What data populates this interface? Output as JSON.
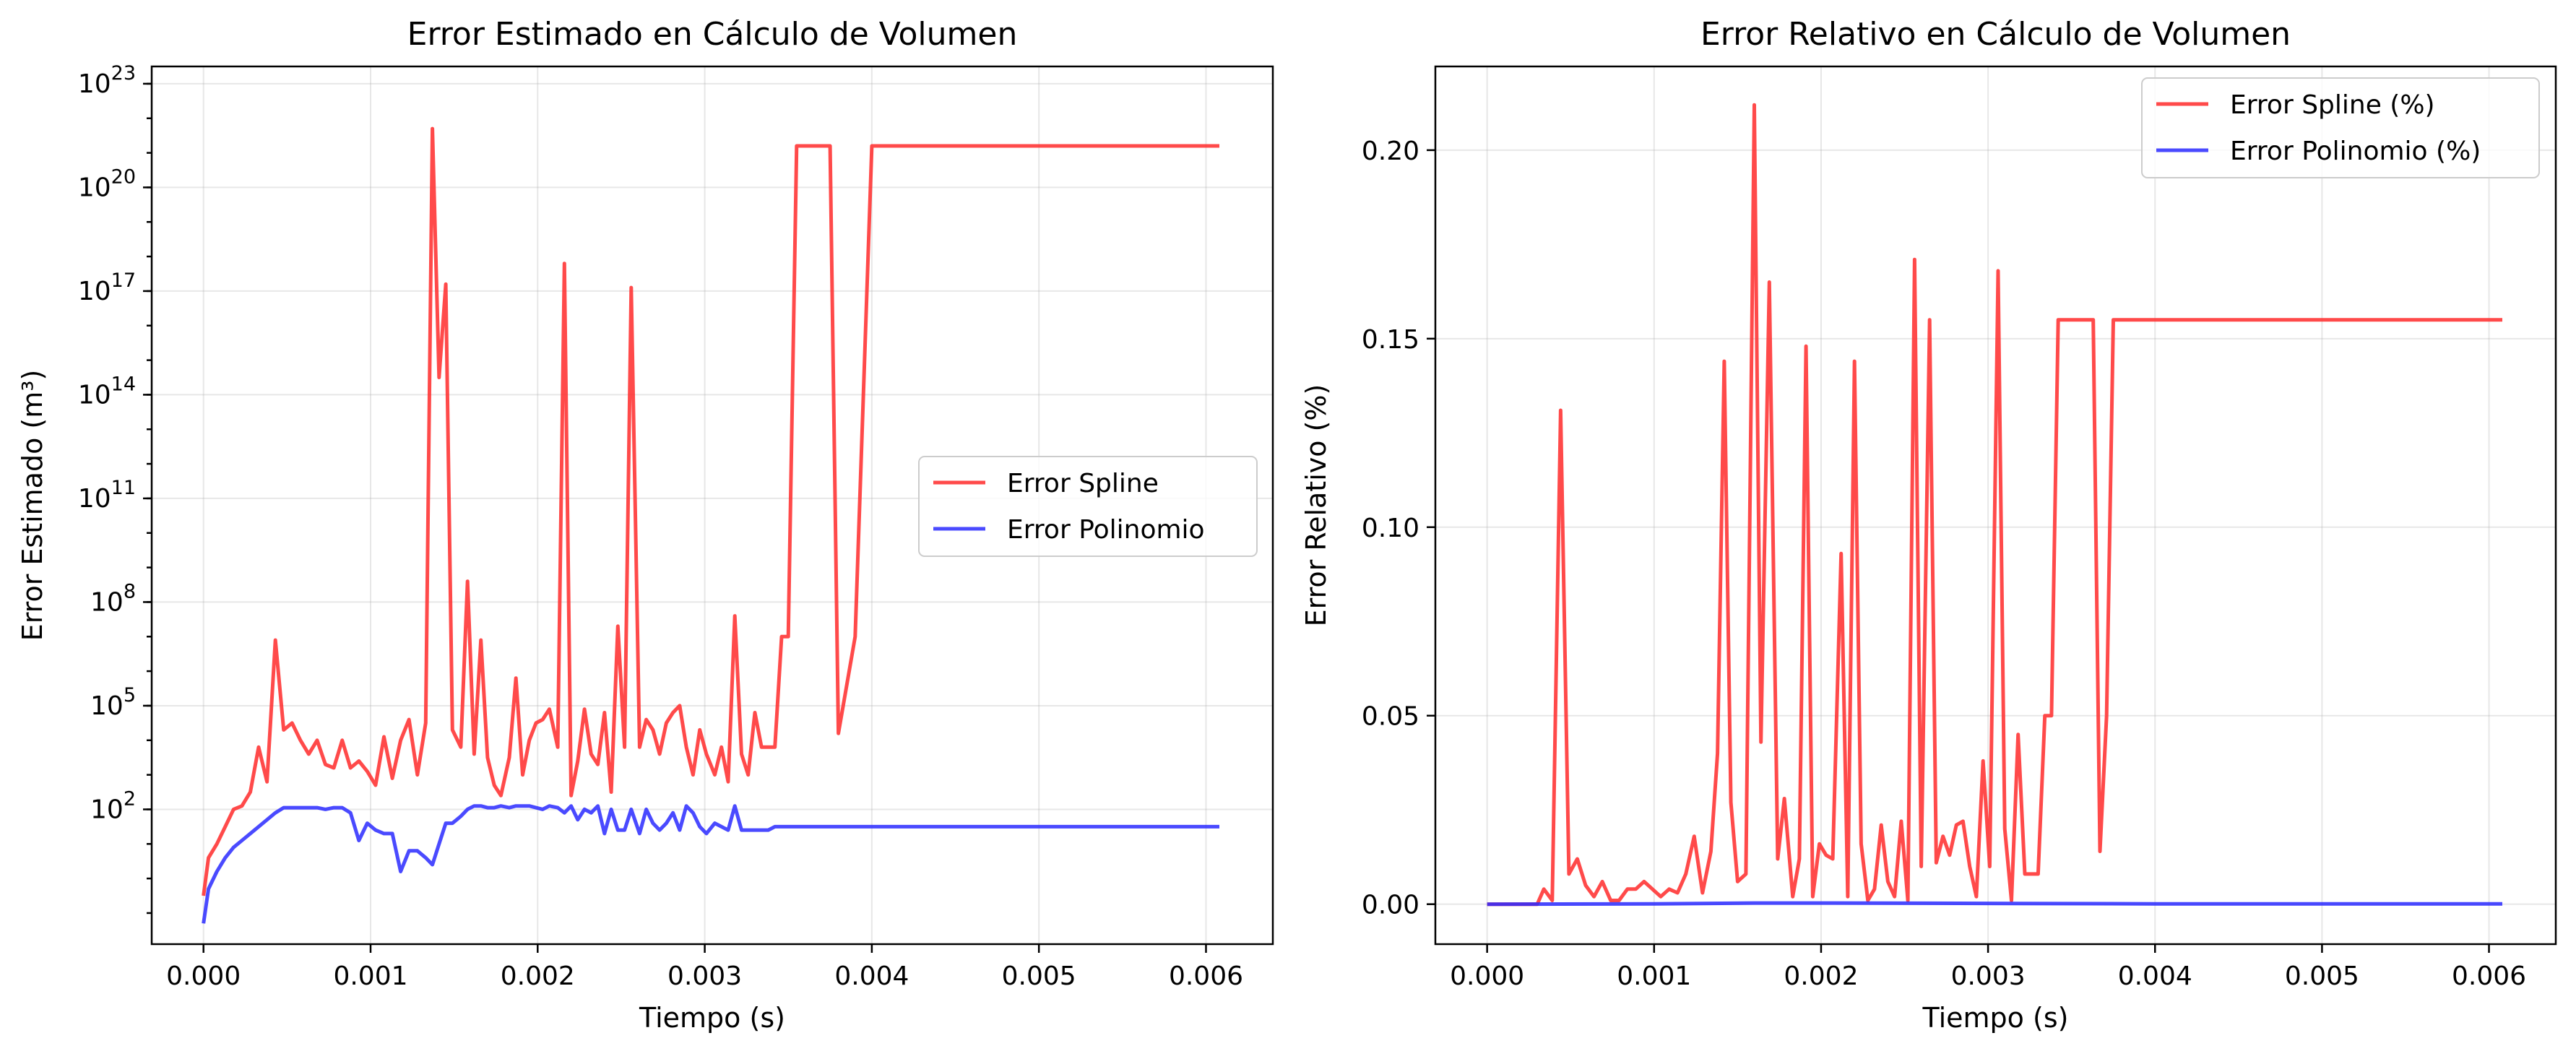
{
  "chart_data": [
    {
      "type": "line",
      "title": "Error Estimado en Cálculo de Volumen",
      "xlabel": "Tiempo (s)",
      "ylabel": "Error Estimado (m³)",
      "yscale": "log",
      "xlim": [
        -0.00031,
        0.0064
      ],
      "ylim_log10": [
        -1.9,
        23.5
      ],
      "grid": true,
      "legend_position": "center-right",
      "x_ticks": [
        "0.000",
        "0.001",
        "0.002",
        "0.003",
        "0.004",
        "0.005",
        "0.006"
      ],
      "x_tick_values": [
        0,
        0.001,
        0.002,
        0.003,
        0.004,
        0.005,
        0.006
      ],
      "y_ticks": [
        {
          "base": "10",
          "exp": "2",
          "value_log10": 2
        },
        {
          "base": "10",
          "exp": "5",
          "value_log10": 5
        },
        {
          "base": "10",
          "exp": "8",
          "value_log10": 8
        },
        {
          "base": "10",
          "exp": "11",
          "value_log10": 11
        },
        {
          "base": "10",
          "exp": "14",
          "value_log10": 14
        },
        {
          "base": "10",
          "exp": "17",
          "value_log10": 17
        },
        {
          "base": "10",
          "exp": "20",
          "value_log10": 20
        },
        {
          "base": "10",
          "exp": "23",
          "value_log10": 23
        }
      ],
      "series": [
        {
          "name": "Error Spline",
          "color": "#ff2a2a",
          "x": [
            0,
            3e-05,
            8e-05,
            0.00013,
            0.00018,
            0.00023,
            0.00028,
            0.00033,
            0.00038,
            0.00043,
            0.00048,
            0.00053,
            0.00058,
            0.00063,
            0.00068,
            0.00073,
            0.00078,
            0.00083,
            0.00088,
            0.00093,
            0.00098,
            0.00103,
            0.00108,
            0.00113,
            0.00118,
            0.00123,
            0.00128,
            0.00133,
            0.00137,
            0.00141,
            0.00145,
            0.00149,
            0.00154,
            0.00158,
            0.00162,
            0.00166,
            0.0017,
            0.00174,
            0.00178,
            0.00183,
            0.00187,
            0.00191,
            0.00195,
            0.00199,
            0.00203,
            0.00207,
            0.00212,
            0.00216,
            0.0022,
            0.00224,
            0.00228,
            0.00232,
            0.00236,
            0.0024,
            0.00244,
            0.00248,
            0.00252,
            0.00256,
            0.00261,
            0.00265,
            0.00269,
            0.00273,
            0.00277,
            0.00281,
            0.00285,
            0.00289,
            0.00293,
            0.00297,
            0.00301,
            0.00306,
            0.0031,
            0.00314,
            0.00318,
            0.00322,
            0.00326,
            0.0033,
            0.00334,
            0.00338,
            0.00342,
            0.00346,
            0.0035,
            0.00355,
            0.00359,
            0.00363,
            0.00367,
            0.00371,
            0.00375,
            0.0038,
            0.0039,
            0.004,
            0.0041,
            0.00419,
            0.00423,
            0.00427,
            0.00431,
            0.0044,
            0.0046,
            0.0048,
            0.005,
            0.0052,
            0.0054,
            0.0056,
            0.0058,
            0.006,
            0.00608
          ],
          "y_log10": [
            -0.5,
            0.6,
            1.0,
            1.5,
            2.0,
            2.1,
            2.5,
            3.8,
            2.8,
            6.9,
            4.3,
            4.5,
            4.0,
            3.6,
            4.0,
            3.3,
            3.2,
            4.0,
            3.2,
            3.4,
            3.1,
            2.7,
            4.1,
            2.9,
            4.0,
            4.6,
            3.0,
            4.5,
            21.7,
            14.5,
            17.2,
            4.3,
            3.8,
            8.6,
            3.6,
            6.9,
            3.5,
            2.7,
            2.4,
            3.5,
            5.8,
            3.0,
            4.0,
            4.5,
            4.6,
            4.9,
            3.8,
            17.8,
            2.4,
            3.4,
            4.9,
            3.6,
            3.3,
            4.8,
            2.5,
            7.3,
            3.8,
            17.1,
            3.8,
            4.6,
            4.3,
            3.6,
            4.5,
            4.8,
            5.0,
            3.8,
            3.0,
            4.3,
            3.6,
            3.0,
            3.8,
            2.8,
            7.6,
            3.6,
            3.0,
            4.8,
            3.8,
            3.8,
            3.8,
            7.0,
            7.0,
            21.2,
            21.2,
            21.2,
            21.2,
            21.2,
            21.2,
            4.2,
            7.0,
            21.2,
            21.2,
            21.2,
            21.2,
            21.2,
            21.2,
            21.2,
            21.2,
            21.2,
            21.2,
            21.2,
            21.2,
            21.2,
            21.2,
            21.2,
            21.2
          ]
        },
        {
          "name": "Error Polinomio",
          "color": "#2a2aff",
          "x": [
            0,
            3e-05,
            8e-05,
            0.00013,
            0.00018,
            0.00023,
            0.00028,
            0.00033,
            0.00038,
            0.00043,
            0.00048,
            0.00053,
            0.00058,
            0.00063,
            0.00068,
            0.00073,
            0.00078,
            0.00083,
            0.00088,
            0.00093,
            0.00098,
            0.00103,
            0.00108,
            0.00113,
            0.00118,
            0.00123,
            0.00128,
            0.00133,
            0.00137,
            0.00141,
            0.00145,
            0.00149,
            0.00154,
            0.00158,
            0.00162,
            0.00166,
            0.0017,
            0.00174,
            0.00178,
            0.00183,
            0.00187,
            0.00191,
            0.00195,
            0.00199,
            0.00203,
            0.00207,
            0.00212,
            0.00216,
            0.0022,
            0.00224,
            0.00228,
            0.00232,
            0.00236,
            0.0024,
            0.00244,
            0.00248,
            0.00252,
            0.00256,
            0.00261,
            0.00265,
            0.00269,
            0.00273,
            0.00277,
            0.00281,
            0.00285,
            0.00289,
            0.00293,
            0.00297,
            0.00301,
            0.00306,
            0.0031,
            0.00314,
            0.00318,
            0.00322,
            0.00326,
            0.0033,
            0.00334,
            0.00338,
            0.00342,
            0.00346,
            0.0035,
            0.00355,
            0.00359,
            0.00363,
            0.00367,
            0.00371,
            0.00375,
            0.0038,
            0.0039,
            0.004,
            0.0041,
            0.00419,
            0.00423,
            0.00427,
            0.00431,
            0.0044,
            0.0046,
            0.0048,
            0.005,
            0.0052,
            0.0054,
            0.0056,
            0.0058,
            0.006,
            0.00608
          ],
          "y_log10": [
            -1.3,
            -0.3,
            0.2,
            0.6,
            0.9,
            1.1,
            1.3,
            1.5,
            1.7,
            1.9,
            2.05,
            2.05,
            2.05,
            2.05,
            2.05,
            2.0,
            2.05,
            2.05,
            1.9,
            1.1,
            1.6,
            1.4,
            1.3,
            1.3,
            0.2,
            0.8,
            0.8,
            0.6,
            0.4,
            1.0,
            1.6,
            1.6,
            1.8,
            2.0,
            2.1,
            2.1,
            2.05,
            2.05,
            2.1,
            2.05,
            2.1,
            2.1,
            2.1,
            2.05,
            2.0,
            2.1,
            2.05,
            1.9,
            2.1,
            1.7,
            2.0,
            1.9,
            2.1,
            1.3,
            2.0,
            1.4,
            1.4,
            2.0,
            1.3,
            2.0,
            1.6,
            1.4,
            1.6,
            1.9,
            1.4,
            2.1,
            1.9,
            1.5,
            1.3,
            1.6,
            1.5,
            1.4,
            2.1,
            1.4,
            1.4,
            1.4,
            1.4,
            1.4,
            1.5,
            1.5,
            1.5,
            1.5,
            1.5,
            1.5,
            1.5,
            1.5,
            1.5,
            1.5,
            1.5,
            1.5,
            1.5,
            1.5,
            1.5,
            1.5,
            1.5,
            1.5,
            1.5,
            1.5,
            1.5,
            1.5,
            1.5,
            1.5,
            1.5,
            1.5,
            1.5
          ]
        }
      ]
    },
    {
      "type": "line",
      "title": "Error Relativo en Cálculo de Volumen",
      "xlabel": "Tiempo (s)",
      "ylabel": "Error Relativo (%)",
      "yscale": "linear",
      "xlim": [
        -0.00031,
        0.0064
      ],
      "ylim": [
        -0.0106,
        0.2222
      ],
      "grid": true,
      "legend_position": "top-right",
      "x_ticks": [
        "0.000",
        "0.001",
        "0.002",
        "0.003",
        "0.004",
        "0.005",
        "0.006"
      ],
      "x_tick_values": [
        0,
        0.001,
        0.002,
        0.003,
        0.004,
        0.005,
        0.006
      ],
      "y_ticks": [
        "0.00",
        "0.05",
        "0.10",
        "0.15",
        "0.20"
      ],
      "y_tick_values": [
        0,
        0.05,
        0.1,
        0.15,
        0.2
      ],
      "series": [
        {
          "name": "Error Spline (%)",
          "color": "#ff2a2a",
          "x": [
            0,
            5e-05,
            0.0001,
            0.00015,
            0.0002,
            0.00025,
            0.0003,
            0.00034,
            0.00039,
            0.00044,
            0.00049,
            0.00054,
            0.00059,
            0.00064,
            0.00069,
            0.00074,
            0.00079,
            0.00084,
            0.00089,
            0.00094,
            0.00099,
            0.00104,
            0.00109,
            0.00114,
            0.00119,
            0.00124,
            0.00129,
            0.00134,
            0.00138,
            0.00142,
            0.00146,
            0.0015,
            0.00155,
            0.0016,
            0.00164,
            0.00169,
            0.00174,
            0.00178,
            0.00183,
            0.00187,
            0.00191,
            0.00195,
            0.00199,
            0.00203,
            0.00207,
            0.00212,
            0.00216,
            0.0022,
            0.00224,
            0.00228,
            0.00232,
            0.00236,
            0.0024,
            0.00244,
            0.00248,
            0.00252,
            0.00256,
            0.0026,
            0.00265,
            0.00269,
            0.00273,
            0.00277,
            0.00281,
            0.00285,
            0.00289,
            0.00293,
            0.00297,
            0.00301,
            0.00306,
            0.0031,
            0.00314,
            0.00318,
            0.00322,
            0.00326,
            0.0033,
            0.00334,
            0.00338,
            0.00342,
            0.00346,
            0.0035,
            0.00354,
            0.00358,
            0.00363,
            0.00367,
            0.00371,
            0.00375,
            0.0038,
            0.0039,
            0.004,
            0.0041,
            0.00419,
            0.00423,
            0.00427,
            0.00431,
            0.0044,
            0.0046,
            0.0048,
            0.005,
            0.0052,
            0.0054,
            0.0056,
            0.0058,
            0.006,
            0.00608
          ],
          "y": [
            0,
            0,
            0,
            0,
            0,
            0,
            0,
            0.004,
            0.001,
            0.131,
            0.008,
            0.012,
            0.005,
            0.002,
            0.006,
            0.001,
            0.001,
            0.004,
            0.004,
            0.006,
            0.004,
            0.002,
            0.004,
            0.003,
            0.008,
            0.018,
            0.003,
            0.014,
            0.04,
            0.144,
            0.027,
            0.006,
            0.008,
            0.212,
            0.043,
            0.165,
            0.012,
            0.028,
            0.002,
            0.012,
            0.148,
            0.002,
            0.016,
            0.013,
            0.012,
            0.093,
            0.002,
            0.144,
            0.016,
            0.001,
            0.004,
            0.021,
            0.006,
            0.002,
            0.022,
            0.001,
            0.171,
            0.01,
            0.155,
            0.011,
            0.018,
            0.013,
            0.021,
            0.022,
            0.01,
            0.002,
            0.038,
            0.01,
            0.168,
            0.02,
            0.001,
            0.045,
            0.008,
            0.008,
            0.008,
            0.05,
            0.05,
            0.155,
            0.155,
            0.155,
            0.155,
            0.155,
            0.155,
            0.014,
            0.05,
            0.155,
            0.155,
            0.155,
            0.155,
            0.155,
            0.155,
            0.155,
            0.155,
            0.155,
            0.155,
            0.155,
            0.155,
            0.155,
            0.155,
            0.155,
            0.155,
            0.155,
            0.155,
            0.155
          ]
        },
        {
          "name": "Error Polinomio (%)",
          "color": "#2a2aff",
          "x": [
            0,
            0.001,
            0.0016,
            0.002,
            0.003,
            0.004,
            0.005,
            0.006,
            0.00608
          ],
          "y": [
            0,
            0.0001,
            0.0003,
            0.0003,
            0.0002,
            0.0001,
            0.0001,
            0.0001,
            0.0001
          ]
        }
      ]
    }
  ]
}
